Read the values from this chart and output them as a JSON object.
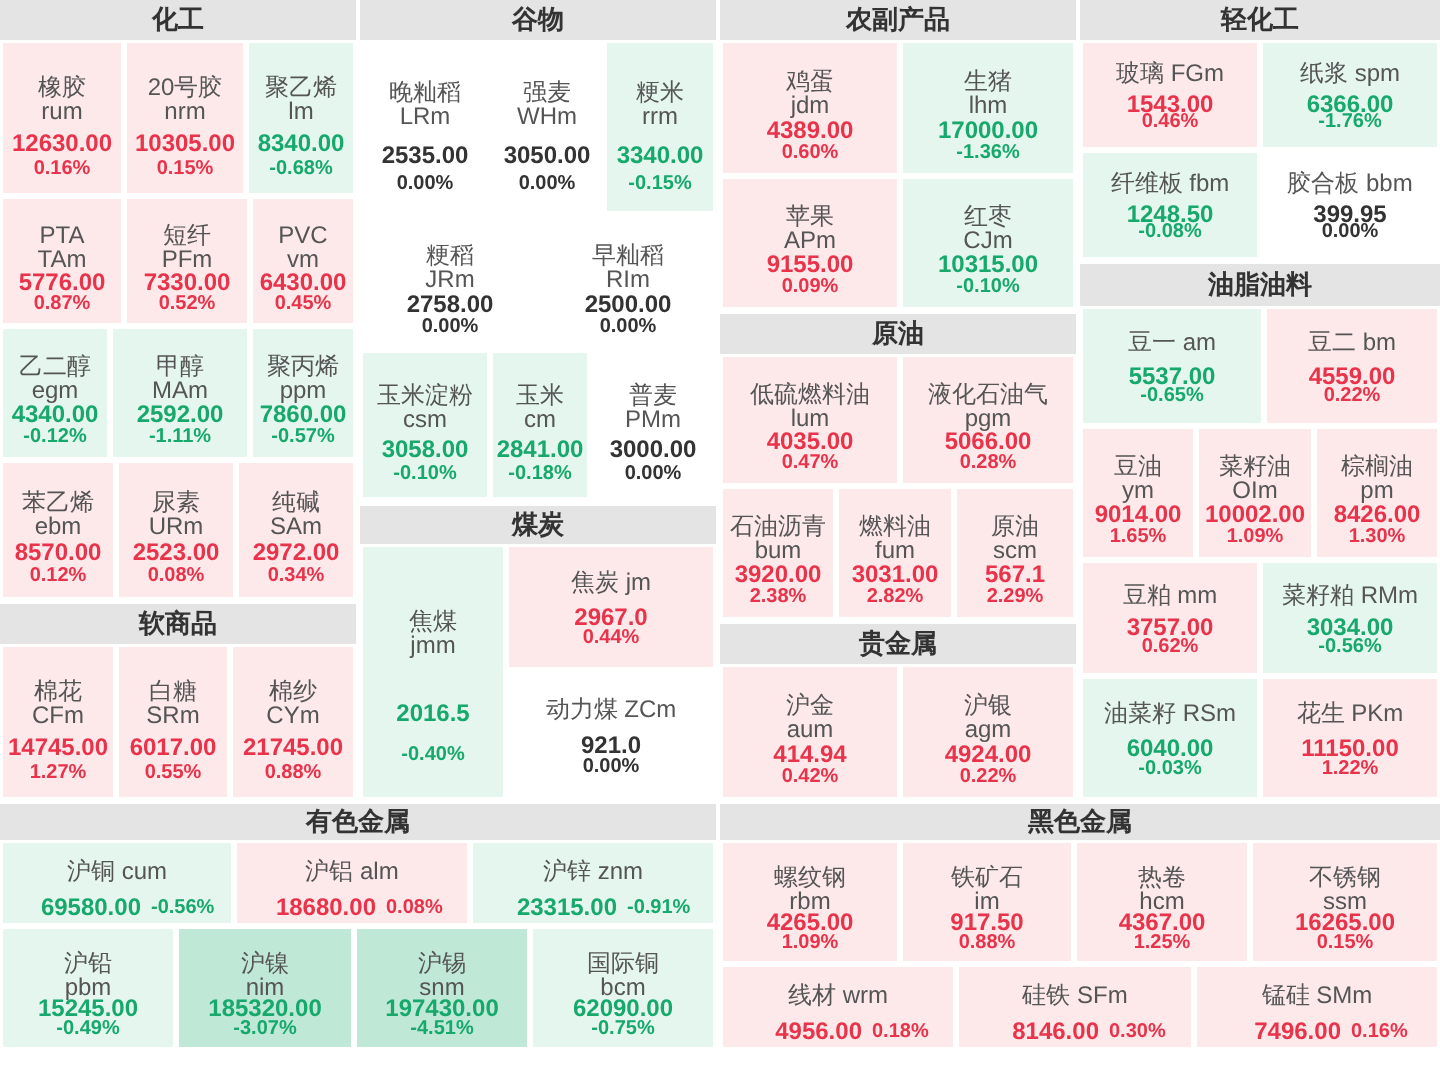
{
  "chart_data": [
    {
      "type": "other",
      "title": "化工",
      "categories": [
        "橡胶 rum",
        "20号胶 nrm",
        "聚乙烯 lm",
        "PTA TAm",
        "短纤 PFm",
        "PVC vm",
        "乙二醇 egm",
        "甲醇 MAm",
        "聚丙烯 ppm",
        "苯乙烯 ebm",
        "尿素 URm",
        "纯碱 SAm"
      ],
      "series": [
        {
          "colors": [
            "#fde8ea",
            "#fde8ea",
            "#e5f6ef",
            "#fde8ea",
            "#fde8ea",
            "#fde8ea",
            "#e5f6ef",
            "#e5f6ef",
            "#e5f6ef",
            "#fde8ea",
            "#fde8ea",
            "#fde8ea"
          ],
          "values": [
            12630,
            10305,
            8340,
            5776,
            7330,
            6430,
            4340,
            2592,
            7860,
            8570,
            2523,
            2972
          ],
          "value_labels": [
            "12630.00",
            "10305.00",
            "8340.00",
            "5776.00",
            "7330.00",
            "6430.00",
            "4340.00",
            "2592.00",
            "7860.00",
            "8570.00",
            "2523.00",
            "2972.00"
          ]
        },
        {
          "values": [
            0.16,
            0.15,
            -0.68,
            0.87,
            0.52,
            0.45,
            -0.12,
            -1.11,
            -0.57,
            0.12,
            0.08,
            0.34
          ],
          "value_labels": [
            "0.16%",
            "0.15%",
            "-0.68%",
            "0.87%",
            "0.52%",
            "0.45%",
            "-0.12%",
            "-1.11%",
            "-0.57%",
            "0.12%",
            "0.08%",
            "0.34%"
          ]
        }
      ]
    },
    {
      "type": "other",
      "title": "谷物",
      "categories": [
        "晚籼稻 LRm",
        "强麦 WHm",
        "粳米 rrm",
        "粳稻 JRm",
        "早籼稻 RIm",
        "玉米淀粉 csm",
        "玉米 cm",
        "普麦 PMm"
      ],
      "series": [
        {
          "colors": [
            "#ffffff",
            "#ffffff",
            "#e5f6ef",
            "#ffffff",
            "#ffffff",
            "#e5f6ef",
            "#e5f6ef",
            "#ffffff"
          ],
          "values": [
            2535,
            3050,
            3340,
            2758,
            2500,
            3058,
            2841,
            3000
          ],
          "value_labels": [
            "2535.00",
            "3050.00",
            "3340.00",
            "2758.00",
            "2500.00",
            "3058.00",
            "2841.00",
            "3000.00"
          ]
        },
        {
          "values": [
            0,
            0,
            -0.15,
            0,
            0,
            -0.1,
            -0.18,
            0
          ],
          "value_labels": [
            "0.00%",
            "0.00%",
            "-0.15%",
            "0.00%",
            "0.00%",
            "-0.10%",
            "-0.18%",
            "0.00%"
          ]
        }
      ]
    },
    {
      "type": "other",
      "title": "农副产品",
      "categories": [
        "鸡蛋 jdm",
        "生猪 lhm",
        "苹果 APm",
        "红枣 CJm"
      ],
      "series": [
        {
          "colors": [
            "#fde8ea",
            "#e5f6ef",
            "#fde8ea",
            "#e5f6ef"
          ],
          "values": [
            4389,
            17000,
            9155,
            10315
          ],
          "value_labels": [
            "4389.00",
            "17000.00",
            "9155.00",
            "10315.00"
          ]
        },
        {
          "values": [
            0.6,
            -1.36,
            0.09,
            -0.1
          ],
          "value_labels": [
            "0.60%",
            "-1.36%",
            "0.09%",
            "-0.10%"
          ]
        }
      ]
    },
    {
      "type": "other",
      "title": "轻化工",
      "categories": [
        "玻璃 FGm",
        "纸浆 spm",
        "纤维板 fbm",
        "胶合板 bbm"
      ],
      "series": [
        {
          "colors": [
            "#fde8ea",
            "#e5f6ef",
            "#e5f6ef",
            "#ffffff"
          ],
          "values": [
            1543,
            6366,
            1248.5,
            399.95
          ],
          "value_labels": [
            "1543.00",
            "6366.00",
            "1248.50",
            "399.95"
          ]
        },
        {
          "values": [
            0.46,
            -1.76,
            -0.08,
            0
          ],
          "value_labels": [
            "0.46%",
            "-1.76%",
            "-0.08%",
            "0.00%"
          ]
        }
      ]
    },
    {
      "type": "other",
      "title": "油脂油料",
      "categories": [
        "豆一 am",
        "豆二 bm",
        "豆油 ym",
        "菜籽油 OIm",
        "棕榈油 pm",
        "豆粕 mm",
        "菜籽粕 RMm",
        "油菜籽 RSm",
        "花生 PKm"
      ],
      "series": [
        {
          "colors": [
            "#e5f6ef",
            "#fde8ea",
            "#fde8ea",
            "#fde8ea",
            "#fde8ea",
            "#fde8ea",
            "#e5f6ef",
            "#e5f6ef",
            "#fde8ea"
          ],
          "values": [
            5537,
            4559,
            9014,
            10002,
            8426,
            3757,
            3034,
            6040,
            11150
          ],
          "value_labels": [
            "5537.00",
            "4559.00",
            "9014.00",
            "10002.00",
            "8426.00",
            "3757.00",
            "3034.00",
            "6040.00",
            "11150.00"
          ]
        },
        {
          "values": [
            -0.65,
            0.22,
            1.65,
            1.09,
            1.3,
            0.62,
            -0.56,
            -0.03,
            1.22
          ],
          "value_labels": [
            "-0.65%",
            "0.22%",
            "1.65%",
            "1.09%",
            "1.30%",
            "0.62%",
            "-0.56%",
            "-0.03%",
            "1.22%"
          ]
        }
      ]
    },
    {
      "type": "other",
      "title": "原油",
      "categories": [
        "低硫燃料油 lum",
        "液化石油气 pgm",
        "石油沥青 bum",
        "燃料油 fum",
        "原油 scm"
      ],
      "series": [
        {
          "colors": [
            "#fde8ea",
            "#fde8ea",
            "#fde8ea",
            "#fde8ea",
            "#fde8ea"
          ],
          "values": [
            4035,
            5066,
            3920,
            3031,
            567.1
          ],
          "value_labels": [
            "4035.00",
            "5066.00",
            "3920.00",
            "3031.00",
            "567.1"
          ]
        },
        {
          "values": [
            0.47,
            0.28,
            2.38,
            2.82,
            2.29
          ],
          "value_labels": [
            "0.47%",
            "0.28%",
            "2.38%",
            "2.82%",
            "2.29%"
          ]
        }
      ]
    },
    {
      "type": "other",
      "title": "煤炭",
      "categories": [
        "焦煤 jmm",
        "焦炭 jm",
        "动力煤 ZCm"
      ],
      "series": [
        {
          "colors": [
            "#e5f6ef",
            "#fde8ea",
            "#ffffff"
          ],
          "values": [
            2016.5,
            2967,
            921
          ],
          "value_labels": [
            "2016.5",
            "2967.0",
            "921.0"
          ]
        },
        {
          "values": [
            -0.4,
            0.44,
            0
          ],
          "value_labels": [
            "-0.40%",
            "0.44%",
            "0.00%"
          ]
        }
      ]
    },
    {
      "type": "other",
      "title": "软商品",
      "categories": [
        "棉花 CFm",
        "白糖 SRm",
        "棉纱 CYm"
      ],
      "series": [
        {
          "colors": [
            "#fde8ea",
            "#fde8ea",
            "#fde8ea"
          ],
          "values": [
            14745,
            6017,
            21745
          ],
          "value_labels": [
            "14745.00",
            "6017.00",
            "21745.00"
          ]
        },
        {
          "values": [
            1.27,
            0.55,
            0.88
          ],
          "value_labels": [
            "1.27%",
            "0.55%",
            "0.88%"
          ]
        }
      ]
    },
    {
      "type": "other",
      "title": "贵金属",
      "categories": [
        "沪金 aum",
        "沪银 agm"
      ],
      "series": [
        {
          "colors": [
            "#fde8ea",
            "#fde8ea"
          ],
          "values": [
            414.94,
            4924
          ],
          "value_labels": [
            "414.94",
            "4924.00"
          ]
        },
        {
          "values": [
            0.42,
            0.22
          ],
          "value_labels": [
            "0.42%",
            "0.22%"
          ]
        }
      ]
    },
    {
      "type": "other",
      "title": "有色金属",
      "categories": [
        "沪铜 cum",
        "沪铝 alm",
        "沪锌 znm",
        "沪铅 pbm",
        "沪镍 nim",
        "沪锡 snm",
        "国际铜 bcm"
      ],
      "series": [
        {
          "colors": [
            "#e5f6ef",
            "#fde8ea",
            "#e5f6ef",
            "#e5f6ef",
            "#bfe9d6",
            "#bfe9d6",
            "#e5f6ef"
          ],
          "values": [
            69580,
            18680,
            23315,
            15245,
            185320,
            197430,
            62090
          ],
          "value_labels": [
            "69580.00",
            "18680.00",
            "23315.00",
            "15245.00",
            "185320.00",
            "197430.00",
            "62090.00"
          ]
        },
        {
          "values": [
            -0.56,
            0.08,
            -0.91,
            -0.49,
            -3.07,
            -4.51,
            -0.75
          ],
          "value_labels": [
            "-0.56%",
            "0.08%",
            "-0.91%",
            "-0.49%",
            "-3.07%",
            "-4.51%",
            "-0.75%"
          ]
        }
      ]
    },
    {
      "type": "other",
      "title": "黑色金属",
      "categories": [
        "螺纹钢 rbm",
        "铁矿石 im",
        "热卷 hcm",
        "不锈钢 ssm",
        "线材 wrm",
        "硅铁 SFm",
        "锰硅 SMm"
      ],
      "series": [
        {
          "colors": [
            "#fde8ea",
            "#fde8ea",
            "#fde8ea",
            "#fde8ea",
            "#fde8ea",
            "#fde8ea",
            "#fde8ea"
          ],
          "values": [
            4265,
            917.5,
            4367,
            16265,
            4956,
            8146,
            7496
          ],
          "value_labels": [
            "4265.00",
            "917.50",
            "4367.00",
            "16265.00",
            "4956.00",
            "8146.00",
            "7496.00"
          ]
        },
        {
          "values": [
            1.09,
            0.88,
            1.25,
            0.15,
            0.18,
            0.3,
            0.16
          ],
          "value_labels": [
            "1.09%",
            "0.88%",
            "1.25%",
            "0.15%",
            "0.18%",
            "0.30%",
            "0.16%"
          ]
        }
      ]
    }
  ]
}
